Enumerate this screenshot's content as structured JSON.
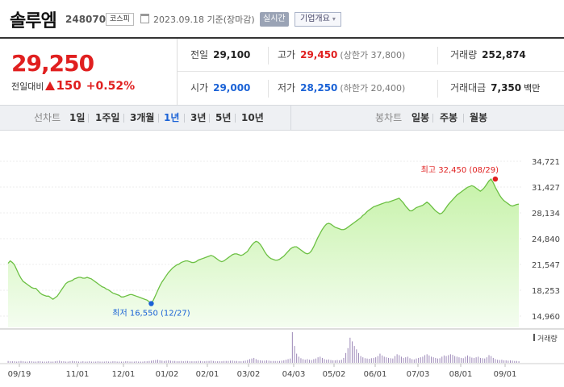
{
  "header": {
    "name": "솔루엠",
    "code": "248070",
    "market": "코스피",
    "date_text": "2023.09.18 기준(장마감)",
    "realtime_label": "실시간",
    "company_label": "기업개요",
    "company_caret": "▾"
  },
  "price": {
    "current": "29,250",
    "change_label": "전일대비",
    "change": "150",
    "change_pct": "+0.52%"
  },
  "stats": {
    "prev_label": "전일",
    "prev": "29,100",
    "high_label": "고가",
    "high": "29,450",
    "upper_limit": "(상한가 37,800)",
    "volume_label": "거래량",
    "volume": "252,874",
    "open_label": "시가",
    "open": "29,000",
    "low_label": "저가",
    "low": "28,250",
    "lower_limit": "(하한가 20,400)",
    "amount_label": "거래대금",
    "amount": "7,350",
    "amount_unit": "백만"
  },
  "tabs": {
    "line_label": "선차트",
    "periods": [
      "1일",
      "1주일",
      "3개월",
      "1년",
      "3년",
      "5년",
      "10년"
    ],
    "active_period": "1년",
    "candle_label": "봉차트",
    "candles": [
      "일봉",
      "주봉",
      "월봉"
    ]
  },
  "colors": {
    "up": "#e01f1f",
    "down": "#1a62d6",
    "line": "#6cc043",
    "fill_top": "#c6f2a8",
    "fill_bottom": "#f4fdf0",
    "volume": "#9d89b8"
  },
  "chart_data": {
    "type": "area",
    "title": "",
    "xlabel": "",
    "ylabel": "",
    "x_ticks": [
      "09/19",
      "11/01",
      "12/01",
      "01/02",
      "02/01",
      "03/02",
      "04/03",
      "05/02",
      "06/01",
      "07/03",
      "08/01",
      "09/01"
    ],
    "y_ticks": [
      "34,721",
      "31,427",
      "28,134",
      "24,840",
      "21,547",
      "18,253",
      "14,960"
    ],
    "ylim": [
      14960,
      34721
    ],
    "volume_label": "거래량",
    "high_annotation": "최고 32,450 (08/29)",
    "low_annotation": "최저 16,550 (12/27)",
    "high": {
      "value": 32450,
      "index": 228
    },
    "low": {
      "value": 16550,
      "index": 67
    },
    "series": [
      {
        "values": [
          21700,
          22000,
          21800,
          21500,
          20900,
          20300,
          19800,
          19400,
          19200,
          19000,
          18800,
          18600,
          18500,
          18500,
          18200,
          17900,
          17700,
          17600,
          17500,
          17500,
          17300,
          17100,
          17300,
          17500,
          17900,
          18300,
          18700,
          19100,
          19300,
          19400,
          19500,
          19700,
          19800,
          19900,
          19900,
          19800,
          19800,
          19900,
          19800,
          19700,
          19500,
          19300,
          19100,
          18900,
          18700,
          18600,
          18400,
          18300,
          18100,
          17900,
          17800,
          17700,
          17600,
          17400,
          17400,
          17500,
          17600,
          17700,
          17700,
          17600,
          17500,
          17400,
          17300,
          17200,
          17100,
          17000,
          16800,
          16550,
          17000,
          17600,
          18200,
          18800,
          19300,
          19700,
          20100,
          20500,
          20800,
          21100,
          21300,
          21500,
          21600,
          21800,
          21900,
          22000,
          22000,
          21900,
          21800,
          21800,
          21900,
          22100,
          22200,
          22300,
          22400,
          22500,
          22600,
          22700,
          22600,
          22400,
          22200,
          22000,
          21900,
          22000,
          22200,
          22400,
          22600,
          22800,
          22900,
          22900,
          22800,
          22700,
          22800,
          23000,
          23200,
          23600,
          24000,
          24300,
          24500,
          24400,
          24100,
          23700,
          23200,
          22800,
          22500,
          22300,
          22200,
          22100,
          22100,
          22200,
          22400,
          22600,
          22900,
          23200,
          23500,
          23700,
          23800,
          23800,
          23600,
          23400,
          23200,
          23000,
          22900,
          23000,
          23300,
          23800,
          24400,
          25000,
          25500,
          26000,
          26400,
          26700,
          26800,
          26700,
          26500,
          26300,
          26200,
          26100,
          26000,
          26000,
          26100,
          26300,
          26500,
          26700,
          26900,
          27100,
          27300,
          27500,
          27800,
          28000,
          28300,
          28500,
          28700,
          28900,
          29000,
          29100,
          29200,
          29300,
          29400,
          29500,
          29500,
          29600,
          29700,
          29800,
          29900,
          30000,
          29700,
          29400,
          29000,
          28700,
          28400,
          28400,
          28600,
          28800,
          28900,
          29000,
          29100,
          29300,
          29500,
          29300,
          29000,
          28700,
          28400,
          28200,
          28000,
          28100,
          28400,
          28800,
          29200,
          29500,
          29800,
          30100,
          30400,
          30600,
          30800,
          31000,
          31200,
          31400,
          31500,
          31600,
          31500,
          31300,
          31100,
          30900,
          31100,
          31400,
          31800,
          32200,
          32450,
          32000,
          31400,
          30900,
          30400,
          30000,
          29700,
          29500,
          29300,
          29100,
          29000,
          29100,
          29200,
          29250
        ]
      }
    ],
    "volume": [
      0.06,
      0.05,
      0.05,
      0.05,
      0.04,
      0.05,
      0.06,
      0.05,
      0.04,
      0.04,
      0.05,
      0.05,
      0.04,
      0.04,
      0.05,
      0.05,
      0.04,
      0.04,
      0.04,
      0.05,
      0.04,
      0.04,
      0.05,
      0.06,
      0.07,
      0.05,
      0.05,
      0.04,
      0.04,
      0.05,
      0.06,
      0.05,
      0.05,
      0.04,
      0.04,
      0.05,
      0.04,
      0.04,
      0.05,
      0.04,
      0.04,
      0.04,
      0.05,
      0.04,
      0.04,
      0.04,
      0.05,
      0.04,
      0.04,
      0.05,
      0.05,
      0.04,
      0.04,
      0.04,
      0.04,
      0.05,
      0.05,
      0.04,
      0.04,
      0.04,
      0.05,
      0.04,
      0.04,
      0.04,
      0.05,
      0.05,
      0.06,
      0.07,
      0.08,
      0.09,
      0.1,
      0.08,
      0.07,
      0.06,
      0.07,
      0.08,
      0.07,
      0.06,
      0.06,
      0.05,
      0.05,
      0.06,
      0.05,
      0.06,
      0.06,
      0.05,
      0.05,
      0.05,
      0.05,
      0.06,
      0.06,
      0.05,
      0.05,
      0.06,
      0.06,
      0.07,
      0.06,
      0.05,
      0.05,
      0.05,
      0.05,
      0.06,
      0.06,
      0.06,
      0.07,
      0.07,
      0.06,
      0.06,
      0.05,
      0.05,
      0.06,
      0.07,
      0.09,
      0.12,
      0.14,
      0.16,
      0.12,
      0.09,
      0.08,
      0.07,
      0.07,
      0.08,
      0.07,
      0.06,
      0.06,
      0.06,
      0.06,
      0.06,
      0.07,
      0.08,
      0.1,
      0.12,
      0.14,
      1.0,
      0.55,
      0.3,
      0.2,
      0.15,
      0.12,
      0.1,
      0.12,
      0.1,
      0.09,
      0.12,
      0.14,
      0.18,
      0.2,
      0.16,
      0.12,
      0.1,
      0.11,
      0.09,
      0.08,
      0.08,
      0.09,
      0.08,
      0.1,
      0.16,
      0.32,
      0.48,
      0.82,
      0.7,
      0.55,
      0.44,
      0.32,
      0.22,
      0.18,
      0.15,
      0.14,
      0.13,
      0.15,
      0.16,
      0.18,
      0.22,
      0.3,
      0.24,
      0.2,
      0.18,
      0.16,
      0.15,
      0.14,
      0.22,
      0.28,
      0.25,
      0.2,
      0.16,
      0.18,
      0.2,
      0.15,
      0.12,
      0.11,
      0.14,
      0.16,
      0.18,
      0.2,
      0.25,
      0.28,
      0.24,
      0.2,
      0.18,
      0.16,
      0.14,
      0.15,
      0.2,
      0.24,
      0.22,
      0.25,
      0.28,
      0.26,
      0.22,
      0.2,
      0.18,
      0.16,
      0.15,
      0.2,
      0.24,
      0.2,
      0.17,
      0.16,
      0.18,
      0.2,
      0.16,
      0.15,
      0.14,
      0.18,
      0.25,
      0.22,
      0.16,
      0.12,
      0.1,
      0.09,
      0.1,
      0.08,
      0.08,
      0.07,
      0.08,
      0.07,
      0.06,
      0.06,
      0.05
    ]
  }
}
